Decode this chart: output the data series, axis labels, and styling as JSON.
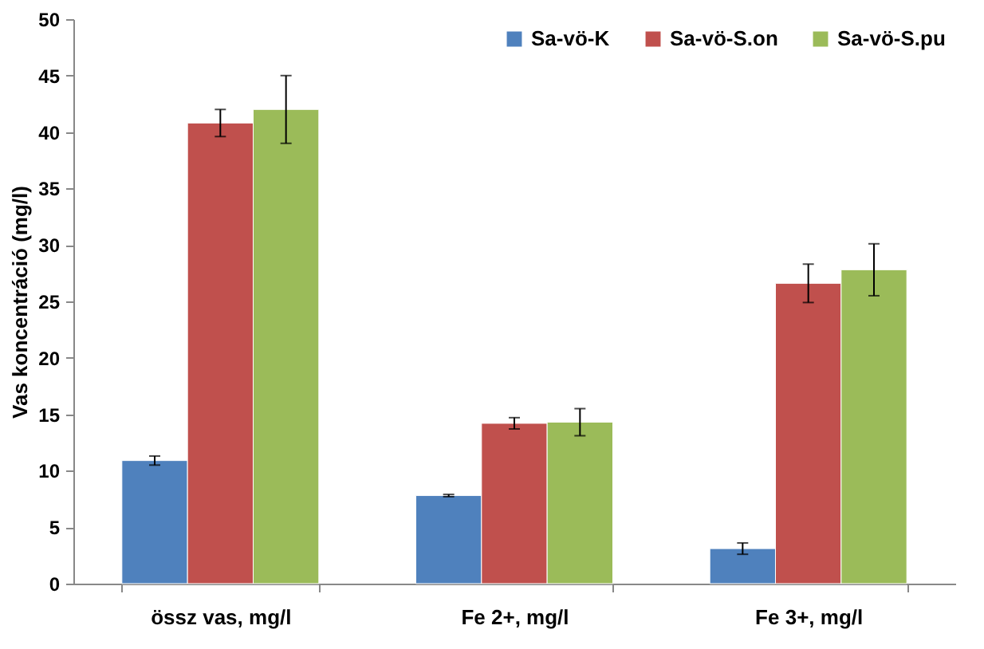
{
  "chart_data": {
    "type": "bar",
    "ylabel": "Vas koncentráció (mg/l)",
    "categories": [
      "össz vas, mg/l",
      "Fe 2+, mg/l",
      "Fe 3+, mg/l"
    ],
    "series": [
      {
        "name": "Sa-vö-K",
        "color": "#4f81bd",
        "values": [
          10.9,
          7.8,
          3.1
        ],
        "errors": [
          0.4,
          0.1,
          0.5
        ]
      },
      {
        "name": "Sa-vö-S.on",
        "color": "#c0504d",
        "values": [
          40.8,
          14.2,
          26.6
        ],
        "errors": [
          1.2,
          0.5,
          1.7
        ]
      },
      {
        "name": "Sa-vö-S.pu",
        "color": "#9bbb59",
        "values": [
          42.0,
          14.3,
          27.8
        ],
        "errors": [
          3.0,
          1.2,
          2.3
        ]
      }
    ],
    "ylim": [
      0,
      50
    ],
    "yticks": [
      0,
      5,
      10,
      15,
      20,
      25,
      30,
      35,
      40,
      45,
      50
    ],
    "grid": false,
    "legend": "top right"
  }
}
